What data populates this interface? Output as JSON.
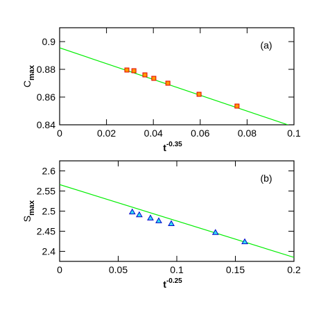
{
  "chart_data": [
    {
      "type": "scatter",
      "annotation": "(a)",
      "xlabel": {
        "base": "t",
        "sup": "-0.35"
      },
      "ylabel": {
        "base": "C",
        "sub": "max"
      },
      "xlim": [
        0,
        0.1
      ],
      "xticks": [
        0,
        0.02,
        0.04,
        0.06,
        0.08,
        0.1
      ],
      "ylim": [
        0.84,
        0.91
      ],
      "yticks": [
        0.84,
        0.86,
        0.88,
        0.9
      ],
      "marker": "square",
      "x": [
        0.0287,
        0.0317,
        0.0364,
        0.0402,
        0.0462,
        0.0595,
        0.0757
      ],
      "series": [
        {
          "color": "#ff9900",
          "edge": "#e00000",
          "values": [
            0.8795,
            0.879,
            0.876,
            0.8735,
            0.87,
            0.862,
            0.8535
          ]
        }
      ],
      "fit": {
        "color": "#00ee00",
        "x": [
          0,
          0.1
        ],
        "values": [
          0.8955,
          0.8385
        ]
      }
    },
    {
      "type": "scatter",
      "annotation": "(b)",
      "xlabel": {
        "base": "t",
        "sup": "-0.25"
      },
      "ylabel": {
        "base": "S",
        "sub": "max"
      },
      "xlim": [
        0,
        0.2
      ],
      "xticks": [
        0,
        0.05,
        0.1,
        0.15,
        0.2
      ],
      "ylim": [
        2.375,
        2.625
      ],
      "yticks": [
        2.4,
        2.45,
        2.5,
        2.55,
        2.6
      ],
      "marker": "triangle",
      "x": [
        0.062,
        0.068,
        0.0775,
        0.0846,
        0.0953,
        0.133,
        0.158
      ],
      "series": [
        {
          "color": "#33ddee",
          "edge": "#0000cc",
          "values": [
            2.498,
            2.491,
            2.483,
            2.476,
            2.469,
            2.447,
            2.424
          ]
        }
      ],
      "fit": {
        "color": "#00ee00",
        "x": [
          0,
          0.2
        ],
        "values": [
          2.566,
          2.385
        ]
      }
    }
  ]
}
